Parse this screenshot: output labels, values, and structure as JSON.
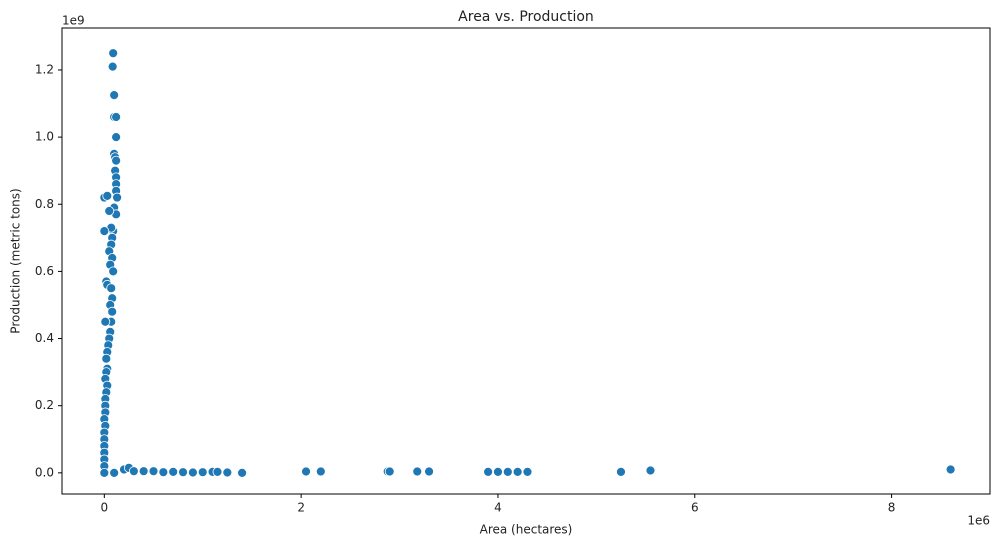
{
  "chart_data": {
    "type": "scatter",
    "title": "Area vs. Production",
    "x_label": "Area (hectares)",
    "y_label": "Production (metric tons)",
    "x_offset_label": "1e6",
    "y_offset_label": "1e9",
    "color": "#1f77b4",
    "xlim": [
      -0.43,
      9.0
    ],
    "ylim": [
      -0.063,
      1.325
    ],
    "xticks": [
      0,
      2,
      4,
      6,
      8
    ],
    "yticks": [
      {
        "value": 0,
        "label": "0.0"
      },
      0.2,
      0.4,
      0.6,
      0.8,
      {
        "value": 1,
        "label": "1.0"
      },
      1.2
    ],
    "x": [
      0.09,
      0.085,
      0.1,
      0.1,
      0.12,
      0.12,
      0.1,
      0.11,
      0.12,
      0.11,
      0.12,
      0.12,
      0.12,
      0.13,
      0.1,
      0.12,
      0.0,
      0.03,
      0.05,
      0.09,
      0.07,
      0.0,
      0.08,
      0.07,
      0.05,
      0.08,
      0.06,
      0.09,
      0.02,
      0.03,
      0.07,
      0.08,
      0.06,
      0.08,
      0.07,
      0.01,
      0.06,
      0.05,
      0.04,
      0.03,
      0.02,
      0.03,
      0.02,
      0.01,
      0.03,
      0.02,
      0.01,
      0.01,
      0.01,
      0.0,
      0.01,
      0.0,
      0.0,
      0.0,
      0.0,
      0.0,
      0.0,
      0.0,
      0.1,
      0.2,
      0.25,
      0.3,
      0.4,
      0.5,
      0.6,
      0.7,
      0.8,
      0.9,
      1.0,
      1.1,
      1.15,
      1.25,
      1.4,
      2.05,
      2.2,
      2.88,
      2.9,
      3.18,
      3.3,
      3.9,
      4.0,
      4.1,
      4.2,
      4.3,
      5.25,
      5.55,
      8.6
    ],
    "values": [
      1.25,
      1.21,
      1.125,
      1.06,
      1.06,
      1.0,
      0.95,
      0.94,
      0.93,
      0.9,
      0.88,
      0.86,
      0.84,
      0.82,
      0.79,
      0.77,
      0.82,
      0.825,
      0.78,
      0.72,
      0.73,
      0.72,
      0.7,
      0.68,
      0.66,
      0.64,
      0.62,
      0.6,
      0.57,
      0.56,
      0.55,
      0.52,
      0.5,
      0.48,
      0.45,
      0.45,
      0.42,
      0.4,
      0.38,
      0.36,
      0.34,
      0.31,
      0.3,
      0.28,
      0.26,
      0.24,
      0.22,
      0.2,
      0.18,
      0.16,
      0.14,
      0.12,
      0.1,
      0.08,
      0.06,
      0.04,
      0.02,
      0.0,
      0.0,
      0.01,
      0.015,
      0.005,
      0.005,
      0.005,
      0.002,
      0.003,
      0.002,
      0.001,
      0.002,
      0.003,
      0.003,
      0.001,
      0.0,
      0.004,
      0.004,
      0.004,
      0.004,
      0.004,
      0.004,
      0.003,
      0.003,
      0.003,
      0.003,
      0.003,
      0.003,
      0.007,
      0.01
    ]
  }
}
